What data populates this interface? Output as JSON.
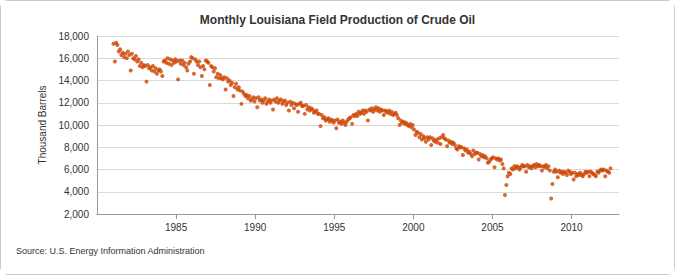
{
  "chart_data": {
    "type": "scatter",
    "title": "Monthly Louisiana Field Production of Crude Oil",
    "y_label": "Thousand Barrels",
    "source": "Source: U.S. Energy Information Administration",
    "color": "#cc4400",
    "marker": "circle",
    "grid": true,
    "xlim": [
      1980,
      2013
    ],
    "xticks": [
      1985,
      1990,
      1995,
      2000,
      2005,
      2010
    ],
    "ylim": [
      2000,
      18000
    ],
    "yticks": [
      {
        "value": 2000,
        "label": "2,000"
      },
      {
        "value": 4000,
        "label": "4,000"
      },
      {
        "value": 6000,
        "label": "6,000"
      },
      {
        "value": 8000,
        "label": "8,000"
      },
      {
        "value": 10000,
        "label": "10,000"
      },
      {
        "value": 12000,
        "label": "12,000"
      },
      {
        "value": 14000,
        "label": "14,000"
      },
      {
        "value": 16000,
        "label": "16,000"
      },
      {
        "value": 18000,
        "label": "18,000"
      }
    ],
    "x": [
      1981.04,
      1981.13,
      1981.21,
      1981.29,
      1981.38,
      1981.46,
      1981.54,
      1981.63,
      1981.71,
      1981.79,
      1981.88,
      1981.96,
      1982.04,
      1982.13,
      1982.21,
      1982.29,
      1982.38,
      1982.46,
      1982.54,
      1982.63,
      1982.71,
      1982.79,
      1982.88,
      1982.96,
      1983.04,
      1983.13,
      1983.21,
      1983.29,
      1983.38,
      1983.46,
      1983.54,
      1983.63,
      1983.71,
      1983.79,
      1983.88,
      1983.96,
      1984.04,
      1984.13,
      1984.21,
      1984.29,
      1984.38,
      1984.46,
      1984.54,
      1984.63,
      1984.71,
      1984.79,
      1984.88,
      1984.96,
      1985.04,
      1985.13,
      1985.21,
      1985.29,
      1985.38,
      1985.46,
      1985.54,
      1985.63,
      1985.71,
      1985.79,
      1985.88,
      1985.96,
      1986.04,
      1986.13,
      1986.21,
      1986.29,
      1986.38,
      1986.46,
      1986.54,
      1986.63,
      1986.71,
      1986.79,
      1986.88,
      1986.96,
      1987.04,
      1987.13,
      1987.21,
      1987.29,
      1987.38,
      1987.46,
      1987.54,
      1987.63,
      1987.71,
      1987.79,
      1987.88,
      1987.96,
      1988.04,
      1988.13,
      1988.21,
      1988.29,
      1988.38,
      1988.46,
      1988.54,
      1988.63,
      1988.71,
      1988.79,
      1988.88,
      1988.96,
      1989.04,
      1989.13,
      1989.21,
      1989.29,
      1989.38,
      1989.46,
      1989.54,
      1989.63,
      1989.71,
      1989.79,
      1989.88,
      1989.96,
      1990.04,
      1990.13,
      1990.21,
      1990.29,
      1990.38,
      1990.46,
      1990.54,
      1990.63,
      1990.71,
      1990.79,
      1990.88,
      1990.96,
      1991.04,
      1991.13,
      1991.21,
      1991.29,
      1991.38,
      1991.46,
      1991.54,
      1991.63,
      1991.71,
      1991.79,
      1991.88,
      1991.96,
      1992.04,
      1992.13,
      1992.21,
      1992.29,
      1992.38,
      1992.46,
      1992.54,
      1992.63,
      1992.71,
      1992.79,
      1992.88,
      1992.96,
      1993.04,
      1993.13,
      1993.21,
      1993.29,
      1993.38,
      1993.46,
      1993.54,
      1993.63,
      1993.71,
      1993.79,
      1993.88,
      1993.96,
      1994.04,
      1994.13,
      1994.21,
      1994.29,
      1994.38,
      1994.46,
      1994.54,
      1994.63,
      1994.71,
      1994.79,
      1994.88,
      1994.96,
      1995.04,
      1995.13,
      1995.21,
      1995.29,
      1995.38,
      1995.46,
      1995.54,
      1995.63,
      1995.71,
      1995.79,
      1995.88,
      1995.96,
      1996.04,
      1996.13,
      1996.21,
      1996.29,
      1996.38,
      1996.46,
      1996.54,
      1996.63,
      1996.71,
      1996.79,
      1996.88,
      1996.96,
      1997.04,
      1997.13,
      1997.21,
      1997.29,
      1997.38,
      1997.46,
      1997.54,
      1997.63,
      1997.71,
      1997.79,
      1997.88,
      1997.96,
      1998.04,
      1998.13,
      1998.21,
      1998.29,
      1998.38,
      1998.46,
      1998.54,
      1998.63,
      1998.71,
      1998.79,
      1998.88,
      1998.96,
      1999.04,
      1999.13,
      1999.21,
      1999.29,
      1999.38,
      1999.46,
      1999.54,
      1999.63,
      1999.71,
      1999.79,
      1999.88,
      1999.96,
      2000.04,
      2000.13,
      2000.21,
      2000.29,
      2000.38,
      2000.46,
      2000.54,
      2000.63,
      2000.71,
      2000.79,
      2000.88,
      2000.96,
      2001.04,
      2001.13,
      2001.21,
      2001.29,
      2001.38,
      2001.46,
      2001.54,
      2001.63,
      2001.71,
      2001.79,
      2001.88,
      2001.96,
      2002.04,
      2002.13,
      2002.21,
      2002.29,
      2002.38,
      2002.46,
      2002.54,
      2002.63,
      2002.71,
      2002.79,
      2002.88,
      2002.96,
      2003.04,
      2003.13,
      2003.21,
      2003.29,
      2003.38,
      2003.46,
      2003.54,
      2003.63,
      2003.71,
      2003.79,
      2003.88,
      2003.96,
      2004.04,
      2004.13,
      2004.21,
      2004.29,
      2004.38,
      2004.46,
      2004.54,
      2004.63,
      2004.71,
      2004.79,
      2004.88,
      2004.96,
      2005.04,
      2005.13,
      2005.21,
      2005.29,
      2005.38,
      2005.46,
      2005.54,
      2005.63,
      2005.71,
      2005.79,
      2005.88,
      2005.96,
      2006.04,
      2006.13,
      2006.21,
      2006.29,
      2006.38,
      2006.46,
      2006.54,
      2006.63,
      2006.71,
      2006.79,
      2006.88,
      2006.96,
      2007.04,
      2007.13,
      2007.21,
      2007.29,
      2007.38,
      2007.46,
      2007.54,
      2007.63,
      2007.71,
      2007.79,
      2007.88,
      2007.96,
      2008.04,
      2008.13,
      2008.21,
      2008.29,
      2008.38,
      2008.46,
      2008.54,
      2008.63,
      2008.71,
      2008.79,
      2008.88,
      2008.96,
      2009.04,
      2009.13,
      2009.21,
      2009.29,
      2009.38,
      2009.46,
      2009.54,
      2009.63,
      2009.71,
      2009.79,
      2009.88,
      2009.96,
      2010.04,
      2010.13,
      2010.21,
      2010.29,
      2010.38,
      2010.46,
      2010.54,
      2010.63,
      2010.71,
      2010.79,
      2010.88,
      2010.96,
      2011.04,
      2011.13,
      2011.21,
      2011.29,
      2011.38,
      2011.46,
      2011.54,
      2011.63,
      2011.71,
      2011.79,
      2011.88,
      2011.96,
      2012.04,
      2012.13,
      2012.21,
      2012.29,
      2012.38,
      2012.46
    ],
    "values": [
      17300,
      15700,
      17400,
      17200,
      16600,
      16800,
      16300,
      16500,
      16100,
      16400,
      16000,
      16600,
      16300,
      14900,
      16400,
      16000,
      15900,
      16200,
      15700,
      15900,
      15300,
      15600,
      15200,
      15400,
      15300,
      13900,
      15400,
      15100,
      15200,
      14900,
      15300,
      14800,
      15100,
      14600,
      14900,
      15000,
      14800,
      14400,
      15700,
      15800,
      15600,
      16000,
      15500,
      15900,
      15400,
      15800,
      15600,
      15900,
      15700,
      14100,
      15800,
      15500,
      15800,
      15400,
      15600,
      15200,
      14900,
      15500,
      15700,
      16100,
      16000,
      14600,
      15900,
      15700,
      15400,
      15700,
      15200,
      14400,
      15300,
      15000,
      15800,
      15700,
      15600,
      13600,
      15300,
      15200,
      14800,
      15100,
      14300,
      14600,
      14200,
      14500,
      14200,
      14100,
      14300,
      13200,
      14200,
      13900,
      14000,
      13600,
      13800,
      12600,
      13400,
      13700,
      13200,
      13400,
      13100,
      11900,
      13000,
      12800,
      12600,
      12700,
      12400,
      12600,
      12200,
      12300,
      12500,
      12100,
      12400,
      11600,
      12500,
      12200,
      12300,
      12000,
      12200,
      12400,
      11900,
      12100,
      12300,
      12000,
      12200,
      11400,
      12300,
      12100,
      12400,
      12000,
      12200,
      12300,
      11900,
      12100,
      12200,
      11800,
      12000,
      11300,
      12100,
      11800,
      12000,
      11500,
      11900,
      11800,
      11200,
      11900,
      12000,
      11700,
      11700,
      11000,
      11800,
      11400,
      11600,
      11300,
      11500,
      11400,
      11100,
      11200,
      11300,
      11000,
      11000,
      9900,
      10900,
      10600,
      10700,
      10400,
      10500,
      10600,
      10300,
      10500,
      10400,
      10200,
      10400,
      9700,
      10500,
      10200,
      10300,
      10100,
      10400,
      10200,
      10000,
      10300,
      10500,
      10600,
      10700,
      10100,
      10900,
      10800,
      11000,
      10800,
      11200,
      11000,
      11100,
      11300,
      11000,
      11300,
      11200,
      10400,
      11400,
      11300,
      11500,
      11200,
      11400,
      11600,
      11300,
      11500,
      11200,
      11400,
      11300,
      10900,
      11300,
      11200,
      11100,
      11300,
      11000,
      11200,
      10900,
      11000,
      11100,
      10900,
      10600,
      10000,
      10400,
      10200,
      10300,
      10100,
      10200,
      10000,
      9900,
      10100,
      9800,
      10000,
      9600,
      9100,
      9400,
      9300,
      8900,
      9200,
      8700,
      9000,
      8800,
      8500,
      8900,
      8700,
      8900,
      8200,
      8800,
      8600,
      8500,
      8700,
      8400,
      8800,
      8300,
      8900,
      9100,
      8800,
      8700,
      8100,
      8600,
      8400,
      8500,
      8300,
      8400,
      8200,
      7900,
      7800,
      8100,
      8000,
      8000,
      7300,
      7900,
      7700,
      7800,
      7500,
      7600,
      7400,
      7200,
      7700,
      7400,
      7500,
      7500,
      6900,
      7400,
      7200,
      7300,
      7100,
      7200,
      7000,
      6600,
      6700,
      6900,
      7000,
      7100,
      6200,
      7000,
      6900,
      7000,
      6800,
      6900,
      6500,
      6100,
      3700,
      4600,
      5400,
      5700,
      5600,
      6100,
      6000,
      6300,
      6100,
      6300,
      6200,
      6000,
      6200,
      6400,
      6300,
      6300,
      5800,
      6400,
      6200,
      6300,
      6100,
      6300,
      6400,
      6200,
      6500,
      6300,
      6400,
      6300,
      5900,
      6300,
      6200,
      6400,
      6100,
      6300,
      5900,
      3400,
      4700,
      5800,
      6000,
      5800,
      5300,
      5900,
      5700,
      5800,
      5600,
      5800,
      5700,
      5500,
      5900,
      5800,
      5600,
      5700,
      5100,
      5700,
      5400,
      5600,
      5500,
      5700,
      5500,
      5400,
      5600,
      5800,
      5700,
      5800,
      5400,
      5800,
      5700,
      5600,
      5500,
      5400,
      5800,
      5700,
      5900,
      6000,
      5900,
      6000,
      5400,
      5900,
      5800,
      5700,
      6100
    ]
  }
}
